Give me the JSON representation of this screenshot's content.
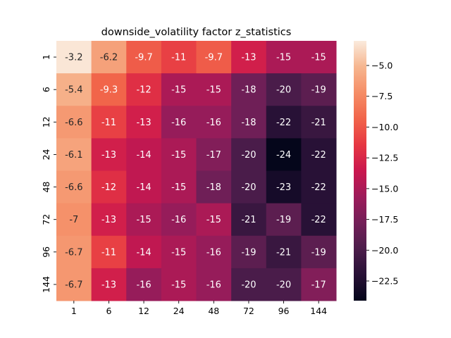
{
  "chart_data": {
    "type": "heatmap",
    "title": "downside_volatility factor z_statistics",
    "xlabel": "",
    "ylabel": "",
    "x_categories": [
      "1",
      "6",
      "12",
      "24",
      "48",
      "72",
      "96",
      "144"
    ],
    "y_categories": [
      "1",
      "6",
      "12",
      "24",
      "48",
      "72",
      "96",
      "144"
    ],
    "values": [
      [
        -3.2,
        -6.2,
        -9.7,
        -11,
        -9.7,
        -13,
        -15,
        -15
      ],
      [
        -5.4,
        -9.3,
        -12,
        -15,
        -15,
        -18,
        -20,
        -19
      ],
      [
        -6.6,
        -11,
        -13,
        -16,
        -16,
        -18,
        -22,
        -21
      ],
      [
        -6.1,
        -13,
        -14,
        -15,
        -17,
        -20,
        -24,
        -22
      ],
      [
        -6.6,
        -12,
        -14,
        -15,
        -18,
        -20,
        -23,
        -22
      ],
      [
        -7,
        -13,
        -15,
        -16,
        -15,
        -21,
        -19,
        -22
      ],
      [
        -6.7,
        -11,
        -14,
        -15,
        -16,
        -19,
        -21,
        -19
      ],
      [
        -6.7,
        -13,
        -16,
        -15,
        -16,
        -20,
        -20,
        -17
      ]
    ],
    "labels": [
      [
        "-3.2",
        "-6.2",
        "-9.7",
        "-11",
        "-9.7",
        "-13",
        "-15",
        "-15"
      ],
      [
        "-5.4",
        "-9.3",
        "-12",
        "-15",
        "-15",
        "-18",
        "-20",
        "-19"
      ],
      [
        "-6.6",
        "-11",
        "-13",
        "-16",
        "-16",
        "-18",
        "-22",
        "-21"
      ],
      [
        "-6.1",
        "-13",
        "-14",
        "-15",
        "-17",
        "-20",
        "-24",
        "-22"
      ],
      [
        "-6.6",
        "-12",
        "-14",
        "-15",
        "-18",
        "-20",
        "-23",
        "-22"
      ],
      [
        "-7",
        "-13",
        "-15",
        "-16",
        "-15",
        "-21",
        "-19",
        "-22"
      ],
      [
        "-6.7",
        "-11",
        "-14",
        "-15",
        "-16",
        "-19",
        "-21",
        "-19"
      ],
      [
        "-6.7",
        "-13",
        "-16",
        "-15",
        "-16",
        "-20",
        "-20",
        "-17"
      ]
    ],
    "colorbar": {
      "vmin": -24.1,
      "vmax": -3.0,
      "ticks": [
        -5.0,
        -7.5,
        -10.0,
        -12.5,
        -15.0,
        -17.5,
        -20.0,
        -22.5
      ],
      "tick_labels": [
        "−5.0",
        "−7.5",
        "−10.0",
        "−12.5",
        "−15.0",
        "−17.5",
        "−20.0",
        "−22.5"
      ],
      "colormap": "rocket",
      "position": "right"
    },
    "grid": false,
    "colors": {
      "text_light": "#ffffff",
      "text_dark": "#262626"
    }
  }
}
